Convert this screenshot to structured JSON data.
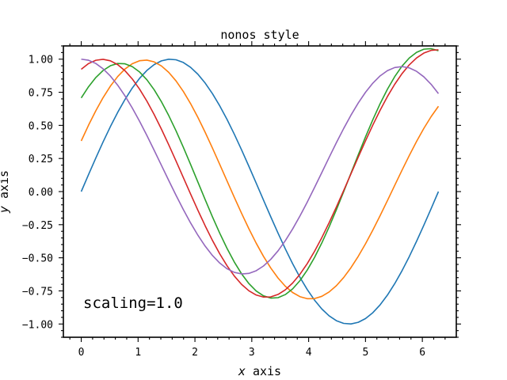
{
  "chart_data": {
    "type": "line",
    "title": "nonos style",
    "xlabel_italic": "x",
    "xlabel_rest": " axis",
    "ylabel_italic": "y",
    "ylabel_rest": " axis",
    "annotation": "scaling=1.0",
    "xlim": [
      -0.3142,
      6.5973
    ],
    "ylim": [
      -1.1,
      1.1
    ],
    "x_ticks": [
      0,
      1,
      2,
      3,
      4,
      5,
      6
    ],
    "x_tick_labels": [
      "0",
      "1",
      "2",
      "3",
      "4",
      "5",
      "6"
    ],
    "y_ticks": [
      1.0,
      0.75,
      0.5,
      0.25,
      0.0,
      -0.25,
      -0.5,
      -0.75,
      -1.0
    ],
    "y_tick_labels": [
      "1.00",
      "0.75",
      "0.50",
      "0.25",
      "0.00",
      "−0.25",
      "−0.50",
      "−0.75",
      "−1.00"
    ],
    "grid": false,
    "x": [
      0.0,
      0.1282,
      0.2565,
      0.3847,
      0.5129,
      0.6411,
      0.7694,
      0.8976,
      1.0258,
      1.1541,
      1.2823,
      1.4105,
      1.5387,
      1.667,
      1.7952,
      1.9234,
      2.0517,
      2.1799,
      2.3081,
      2.4363,
      2.5646,
      2.6928,
      2.821,
      2.9493,
      3.0775,
      3.2057,
      3.3339,
      3.4622,
      3.5904,
      3.7186,
      3.8468,
      3.9751,
      4.1033,
      4.2315,
      4.3598,
      4.488,
      4.6162,
      4.7444,
      4.8727,
      5.0009,
      5.1291,
      5.2574,
      5.3856,
      5.5138,
      5.642,
      5.7703,
      5.8985,
      6.0267,
      6.155,
      6.2832
    ],
    "series": [
      {
        "color": "#1f77b4",
        "values": [
          0.0,
          0.1279,
          0.2537,
          0.3753,
          0.4907,
          0.5981,
          0.6956,
          0.7818,
          0.8551,
          0.9144,
          0.9587,
          0.9872,
          0.9995,
          0.9954,
          0.9749,
          0.9383,
          0.8862,
          0.8196,
          0.7396,
          0.6474,
          0.5446,
          0.433,
          0.3143,
          0.1906,
          0.0641,
          -0.0641,
          -0.1906,
          -0.3143,
          -0.433,
          -0.5446,
          -0.6474,
          -0.7396,
          -0.8196,
          -0.8862,
          -0.9383,
          -0.9749,
          -0.9954,
          -0.9995,
          -0.9872,
          -0.9587,
          -0.9144,
          -0.8551,
          -0.7818,
          -0.6956,
          -0.5981,
          -0.4907,
          -0.3753,
          -0.2537,
          -0.1279,
          0.0
        ]
      },
      {
        "color": "#ff7f0e",
        "values": [
          0.3827,
          0.5012,
          0.6108,
          0.7098,
          0.7964,
          0.8687,
          0.9255,
          0.9655,
          0.9881,
          0.9928,
          0.9796,
          0.9486,
          0.9004,
          0.8359,
          0.7567,
          0.6641,
          0.5604,
          0.4477,
          0.3285,
          0.2052,
          0.0803,
          -0.0437,
          -0.1649,
          -0.281,
          -0.3897,
          -0.4891,
          -0.5774,
          -0.6532,
          -0.7152,
          -0.7622,
          -0.7935,
          -0.8088,
          -0.8079,
          -0.7909,
          -0.7582,
          -0.7105,
          -0.6489,
          -0.5746,
          -0.4889,
          -0.3937,
          -0.2906,
          -0.1815,
          -0.0684,
          0.0467,
          0.1611,
          0.2725,
          0.3787,
          0.4774,
          0.5665,
          0.6441
        ]
      },
      {
        "color": "#2ca02c",
        "values": [
          0.7071,
          0.7917,
          0.8614,
          0.9147,
          0.9503,
          0.9673,
          0.9651,
          0.9436,
          0.9033,
          0.8448,
          0.7694,
          0.6786,
          0.5744,
          0.4591,
          0.3351,
          0.2052,
          0.0723,
          -0.0607,
          -0.1906,
          -0.3143,
          -0.4291,
          -0.5323,
          -0.6216,
          -0.6949,
          -0.7506,
          -0.7873,
          -0.8043,
          -0.801,
          -0.7776,
          -0.7345,
          -0.6726,
          -0.593,
          -0.4975,
          -0.388,
          -0.2669,
          -0.1368,
          -0.0006,
          0.1387,
          0.2777,
          0.4135,
          0.5431,
          0.6637,
          0.7727,
          0.8678,
          0.947,
          1.0087,
          1.0517,
          1.0753,
          1.0792,
          1.0637
        ]
      },
      {
        "color": "#d62728",
        "values": [
          0.9239,
          0.9667,
          0.9917,
          0.9987,
          0.9876,
          0.9587,
          0.9127,
          0.8506,
          0.7738,
          0.6837,
          0.5823,
          0.4716,
          0.3538,
          0.2313,
          0.1065,
          -0.0183,
          -0.1407,
          -0.2583,
          -0.3688,
          -0.4701,
          -0.5603,
          -0.6377,
          -0.701,
          -0.7491,
          -0.7811,
          -0.7965,
          -0.7951,
          -0.7767,
          -0.7417,
          -0.6906,
          -0.6244,
          -0.5442,
          -0.4515,
          -0.348,
          -0.2355,
          -0.1161,
          0.008,
          0.1343,
          0.2603,
          0.3838,
          0.5026,
          0.6145,
          0.7176,
          0.8101,
          0.8904,
          0.9571,
          1.0092,
          1.0459,
          1.0665,
          1.0708
        ]
      },
      {
        "color": "#9467bd",
        "values": [
          1.0,
          0.9918,
          0.9673,
          0.9272,
          0.8722,
          0.8036,
          0.7228,
          0.6314,
          0.5312,
          0.4242,
          0.3126,
          0.1985,
          0.0844,
          -0.0276,
          -0.1353,
          -0.2366,
          -0.3294,
          -0.4119,
          -0.4825,
          -0.5398,
          -0.5826,
          -0.6101,
          -0.6219,
          -0.6177,
          -0.5976,
          -0.562,
          -0.5115,
          -0.4473,
          -0.3703,
          -0.2822,
          -0.1847,
          -0.0797,
          0.0305,
          0.1436,
          0.2573,
          0.369,
          0.4764,
          0.5772,
          0.6691,
          0.7503,
          0.8189,
          0.8736,
          0.9132,
          0.9368,
          0.9438,
          0.9342,
          0.9082,
          0.8664,
          0.8098,
          0.7398
        ]
      }
    ]
  }
}
